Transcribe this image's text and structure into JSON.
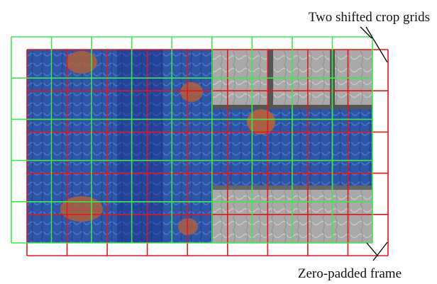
{
  "labels": {
    "top": "Two shifted crop grids",
    "bottom": "Zero-padded frame"
  }
}
